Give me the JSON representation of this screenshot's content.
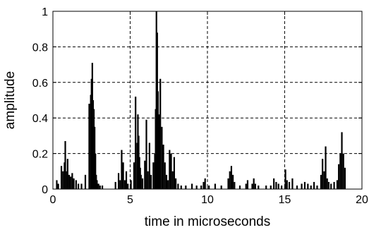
{
  "chart_data": {
    "type": "bar",
    "xlabel": "time in microseconds",
    "ylabel": "amplitude",
    "xlim": [
      0,
      20
    ],
    "ylim": [
      0,
      1
    ],
    "xticks": [
      "0",
      "5",
      "10",
      "15",
      "20"
    ],
    "yticks": [
      "0",
      "0.2",
      "0.4",
      "0.6",
      "0.8",
      "1"
    ],
    "grid": true,
    "bar_color": "#000000",
    "x": [
      0.25,
      0.35,
      0.55,
      0.65,
      0.75,
      0.8,
      0.9,
      0.95,
      1.05,
      1.15,
      1.25,
      1.35,
      1.5,
      1.65,
      1.85,
      2.1,
      2.35,
      2.45,
      2.5,
      2.55,
      2.6,
      2.65,
      2.7,
      2.75,
      2.8,
      2.85,
      2.95,
      3.05,
      3.2,
      4.05,
      4.25,
      4.35,
      4.45,
      4.55,
      4.65,
      4.75,
      4.85,
      5.05,
      5.25,
      5.35,
      5.45,
      5.5,
      5.55,
      5.6,
      5.65,
      5.7,
      5.8,
      5.95,
      6.05,
      6.15,
      6.25,
      6.35,
      6.5,
      6.6,
      6.65,
      6.7,
      6.75,
      6.8,
      6.85,
      6.9,
      6.95,
      7.05,
      7.15,
      7.25,
      7.35,
      7.45,
      7.55,
      7.65,
      7.75,
      7.85,
      7.95,
      8.1,
      8.3,
      8.6,
      9.0,
      9.3,
      9.6,
      9.75,
      9.85,
      10.1,
      10.5,
      10.9,
      11.35,
      11.45,
      11.55,
      11.65,
      11.75,
      12.1,
      12.5,
      12.6,
      12.9,
      13.0,
      13.1,
      13.3,
      13.8,
      14.1,
      14.3,
      14.45,
      14.6,
      14.8,
      15.05,
      15.15,
      15.3,
      15.5,
      15.8,
      16.1,
      16.3,
      16.5,
      16.7,
      16.9,
      17.1,
      17.35,
      17.45,
      17.55,
      17.65,
      17.75,
      17.85,
      18.0,
      18.2,
      18.4,
      18.5,
      18.6,
      18.7,
      18.8,
      18.9
    ],
    "values": [
      0.05,
      0.03,
      0.13,
      0.1,
      0.15,
      0.27,
      0.1,
      0.17,
      0.08,
      0.07,
      0.09,
      0.06,
      0.05,
      0.03,
      0.03,
      0.08,
      0.48,
      0.53,
      0.62,
      0.71,
      0.5,
      0.45,
      0.35,
      0.2,
      0.08,
      0.05,
      0.03,
      0.02,
      0.02,
      0.04,
      0.09,
      0.05,
      0.22,
      0.15,
      0.05,
      0.1,
      0.03,
      0.05,
      0.15,
      0.52,
      0.26,
      0.42,
      0.3,
      0.18,
      0.12,
      0.08,
      0.06,
      0.16,
      0.39,
      0.1,
      0.26,
      0.08,
      0.15,
      0.2,
      0.45,
      1.0,
      0.88,
      0.55,
      0.35,
      0.42,
      0.62,
      0.35,
      0.25,
      0.15,
      0.08,
      0.05,
      0.22,
      0.2,
      0.1,
      0.18,
      0.06,
      0.03,
      0.02,
      0.02,
      0.03,
      0.02,
      0.02,
      0.04,
      0.06,
      0.02,
      0.03,
      0.02,
      0.06,
      0.1,
      0.13,
      0.08,
      0.04,
      0.02,
      0.03,
      0.05,
      0.03,
      0.06,
      0.03,
      0.02,
      0.02,
      0.02,
      0.06,
      0.04,
      0.03,
      0.02,
      0.11,
      0.05,
      0.04,
      0.06,
      0.02,
      0.03,
      0.04,
      0.03,
      0.02,
      0.04,
      0.02,
      0.08,
      0.17,
      0.1,
      0.24,
      0.06,
      0.04,
      0.03,
      0.04,
      0.05,
      0.14,
      0.2,
      0.32,
      0.2,
      0.12
    ]
  }
}
